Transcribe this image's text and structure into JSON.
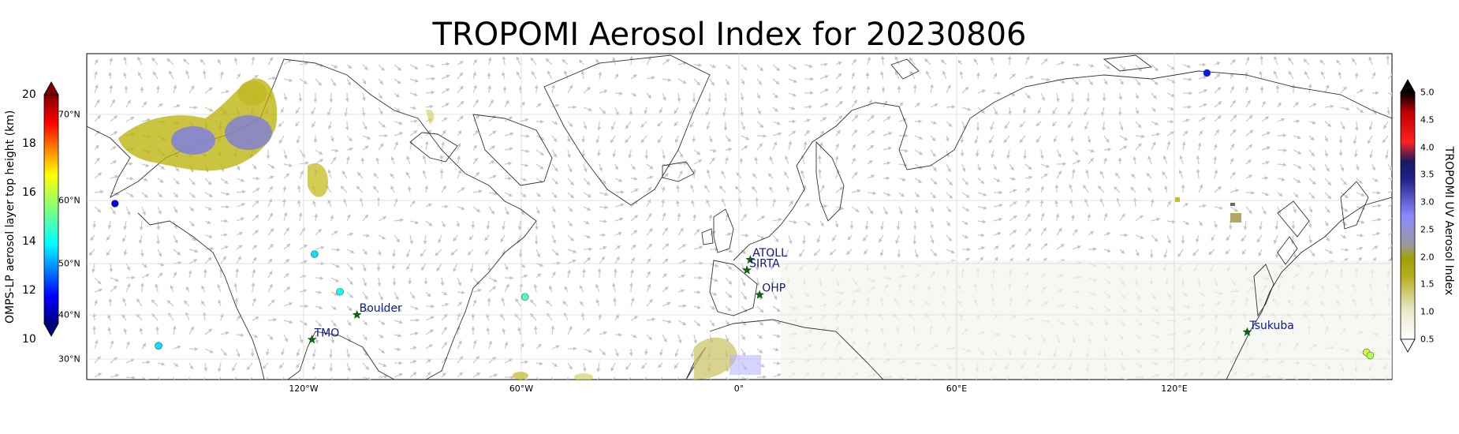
{
  "title": "TROPOMI Aerosol Index for 20230806",
  "axes": {
    "lon_ticks": [
      "120°W",
      "60°W",
      "0°",
      "60°E",
      "120°E"
    ],
    "lat_ticks": [
      "70°N",
      "60°N",
      "50°N",
      "40°N",
      "30°N"
    ]
  },
  "colorbar_left": {
    "label": "OMPS-LP aerosol layer top height (km)",
    "ticks": [
      "20",
      "18",
      "16",
      "14",
      "12",
      "10"
    ],
    "range": [
      10,
      20
    ],
    "colormap": "jet"
  },
  "colorbar_right": {
    "label": "TROPOMI UV Aerosol Index",
    "ticks": [
      "5.0",
      "4.5",
      "4.0",
      "3.5",
      "3.0",
      "2.5",
      "2.0",
      "1.5",
      "1.0",
      "0.5"
    ],
    "range": [
      0.5,
      5.0
    ],
    "stops": [
      "#ffffff",
      "#c8c8a0",
      "#aaaa00",
      "#999999",
      "#8080ff",
      "#1a1a80",
      "#ff0000",
      "#000000"
    ]
  },
  "sites": [
    {
      "name": "ATOLL",
      "lon": 3.1,
      "lat": 50.6
    },
    {
      "name": "SIRTA",
      "lon": 2.2,
      "lat": 48.7
    },
    {
      "name": "OHP",
      "lon": 5.7,
      "lat": 43.9
    },
    {
      "name": "Boulder",
      "lon": -105.3,
      "lat": 40.0
    },
    {
      "name": "TMO",
      "lon": -117.7,
      "lat": 34.4
    },
    {
      "name": "Tsukuba",
      "lon": 140.1,
      "lat": 36.1
    }
  ],
  "omps_points": [
    {
      "lon": -172,
      "lat": 59.5,
      "height_km": 11.0
    },
    {
      "lon": -117,
      "lat": 51.5,
      "height_km": 13.5
    },
    {
      "lon": -110,
      "lat": 44.5,
      "height_km": 13.8
    },
    {
      "lon": -160,
      "lat": 33.0,
      "height_km": 13.5
    },
    {
      "lon": -59,
      "lat": 43.5,
      "height_km": 14.5
    },
    {
      "lon": 129,
      "lat": 75.0,
      "height_km": 11.5
    },
    {
      "lon": 173,
      "lat": 31.5,
      "height_km": 15.8
    },
    {
      "lon": 174,
      "lat": 30.8,
      "height_km": 15.5
    }
  ]
}
